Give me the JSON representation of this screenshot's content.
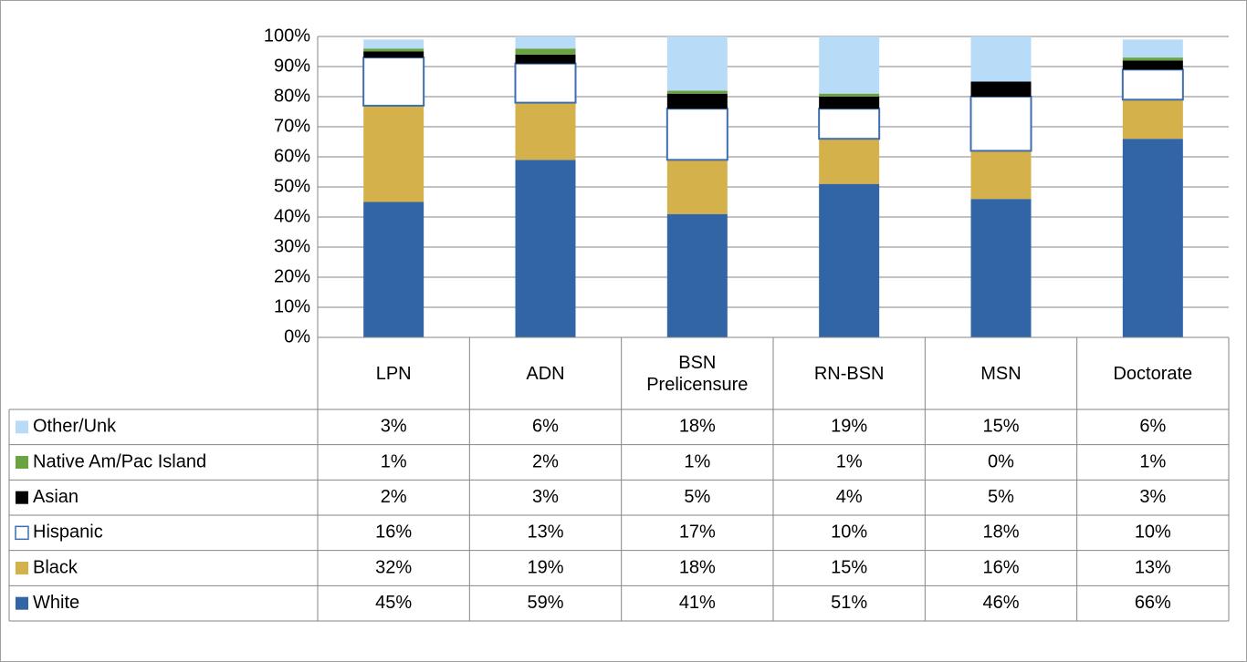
{
  "chart_data": {
    "type": "bar",
    "stacked": true,
    "categories": [
      "LPN",
      "ADN",
      "BSN Prelicensure",
      "RN-BSN",
      "MSN",
      "Doctorate"
    ],
    "series": [
      {
        "name": "White",
        "color": "#3165a5",
        "values": [
          45,
          59,
          41,
          51,
          46,
          66
        ],
        "value_labels": [
          "45%",
          "59%",
          "41%",
          "51%",
          "46%",
          "66%"
        ]
      },
      {
        "name": "Black",
        "color": "#d4b14a",
        "values": [
          32,
          19,
          18,
          15,
          16,
          13
        ],
        "value_labels": [
          "32%",
          "19%",
          "18%",
          "15%",
          "16%",
          "13%"
        ]
      },
      {
        "name": "Hispanic",
        "color": "#3d6fb0",
        "values": [
          16,
          13,
          17,
          10,
          18,
          10
        ],
        "value_labels": [
          "16%",
          "13%",
          "17%",
          "10%",
          "18%",
          "10%"
        ]
      },
      {
        "name": "Asian",
        "color": "#000000",
        "values": [
          2,
          3,
          5,
          4,
          5,
          3
        ],
        "value_labels": [
          "2%",
          "3%",
          "5%",
          "4%",
          "5%",
          "3%"
        ]
      },
      {
        "name": "Native Am/Pac Island",
        "color": "#6aa342",
        "values": [
          1,
          2,
          1,
          1,
          0,
          1
        ],
        "value_labels": [
          "1%",
          "2%",
          "1%",
          "1%",
          "0%",
          "1%"
        ]
      },
      {
        "name": "Other/Unk",
        "color": "#b8dcf8",
        "values": [
          3,
          6,
          18,
          19,
          15,
          6
        ],
        "value_labels": [
          "3%",
          "6%",
          "18%",
          "19%",
          "15%",
          "6%"
        ]
      }
    ],
    "ylim": [
      0,
      100
    ],
    "yticks": [
      {
        "value": 0,
        "label": "0%"
      },
      {
        "value": 10,
        "label": "10%"
      },
      {
        "value": 20,
        "label": "20%"
      },
      {
        "value": 30,
        "label": "30%"
      },
      {
        "value": 40,
        "label": "40%"
      },
      {
        "value": 50,
        "label": "50%"
      },
      {
        "value": 60,
        "label": "60%"
      },
      {
        "value": 70,
        "label": "70%"
      },
      {
        "value": 80,
        "label": "80%"
      },
      {
        "value": 90,
        "label": "90%"
      },
      {
        "value": 100,
        "label": "100%"
      }
    ],
    "grid": true,
    "outlined_series": [
      "Hispanic"
    ]
  }
}
